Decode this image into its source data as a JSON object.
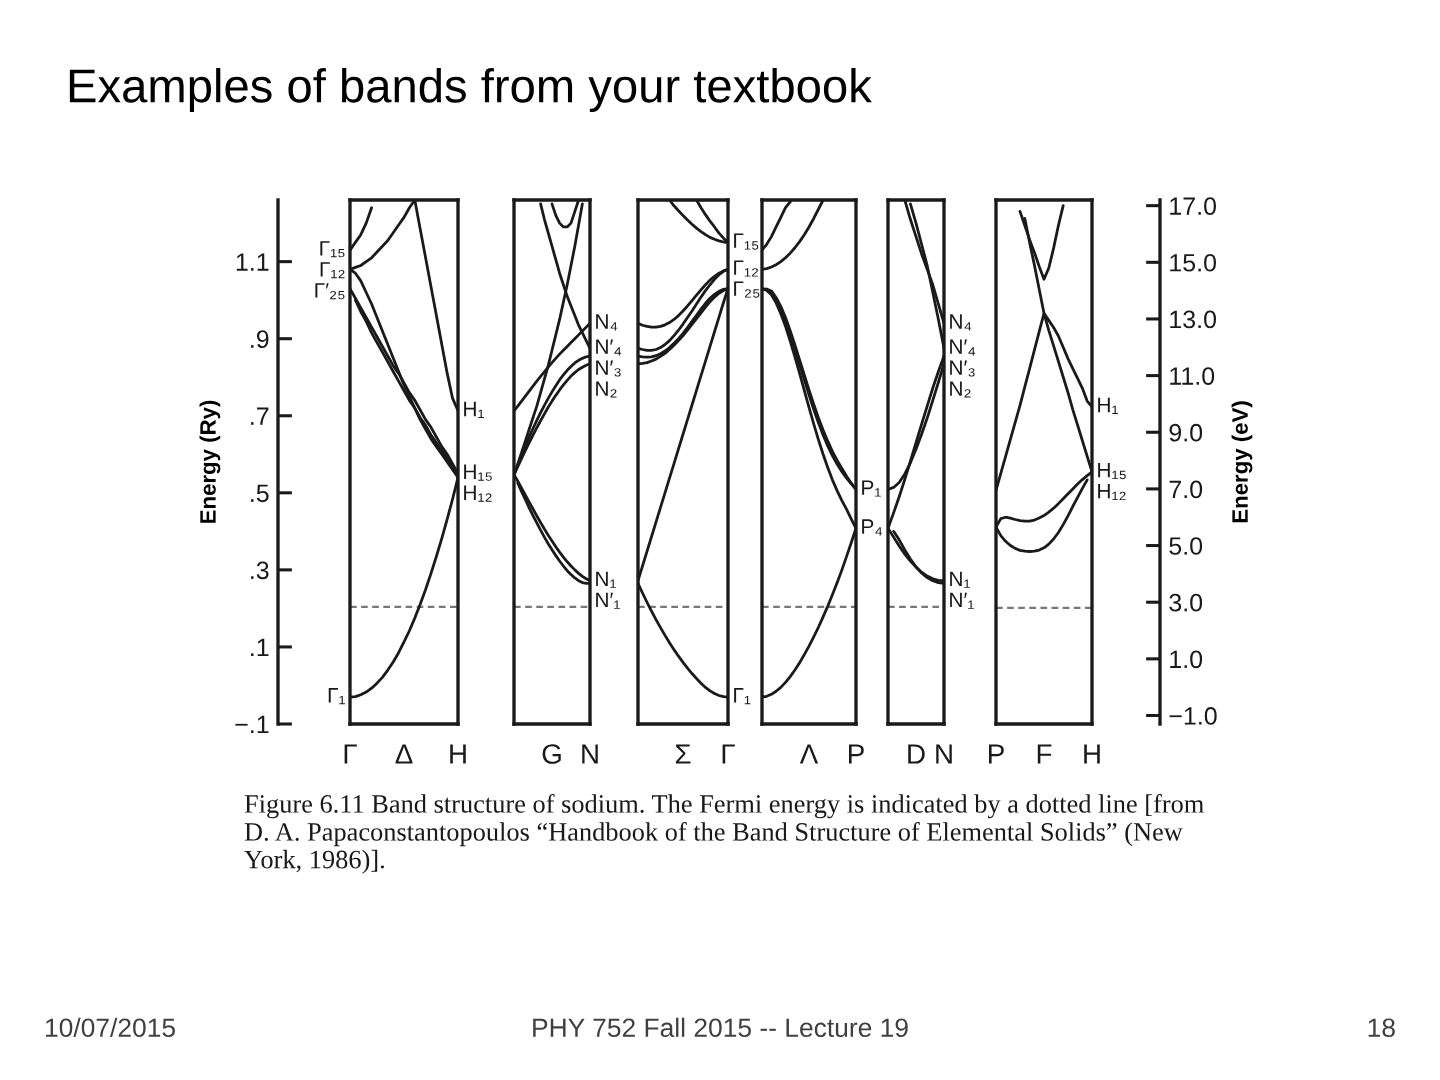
{
  "chart_data": [
    {
      "type": "line",
      "title": "Examples of bands from your textbook",
      "ylabel": "Energy (Ry)",
      "color": "#1a1a1a",
      "categories": [
        "Γ",
        null,
        null,
        null,
        null,
        null,
        null,
        null,
        null,
        null,
        "Δ",
        null,
        null,
        null,
        null,
        null,
        null,
        null,
        null,
        null,
        "H"
      ],
      "ylim": [
        -0.1,
        1.26
      ],
      "yticks": [
        {
          "value": -0.1,
          "label": "−.1"
        },
        {
          "value": 0.1,
          "label": ".1"
        },
        {
          "value": 0.3,
          "label": ".3"
        },
        {
          "value": 0.5,
          "label": ".5"
        },
        {
          "value": 0.7,
          "label": ".7"
        },
        {
          "value": 0.9,
          "label": ".9"
        },
        1.1
      ],
      "ref_lines": [
        {
          "axis": "y",
          "value": 0.204,
          "color": "#777777",
          "line_style": "dashed"
        }
      ],
      "series": [
        {
          "values": [
            -0.03,
            -0.029,
            -0.024,
            -0.017,
            -0.007,
            0.006,
            0.021,
            0.04,
            0.061,
            0.085,
            0.113,
            0.142,
            0.175,
            0.211,
            0.249,
            0.291,
            0.335,
            0.382,
            0.432,
            0.484,
            0.54
          ]
        },
        {
          "values": [
            1.03,
            1.005,
            0.98,
            0.955,
            0.93,
            0.905,
            0.88,
            0.855,
            0.83,
            0.81,
            0.785,
            0.76,
            0.74,
            0.715,
            0.69,
            0.67,
            0.645,
            0.62,
            0.6,
            0.575,
            0.55
          ]
        },
        {
          "values": [
            null,
            1.0,
            0.97,
            0.945,
            0.915,
            0.89,
            0.865,
            0.84,
            0.815,
            0.79,
            0.765,
            0.74,
            0.72,
            0.695,
            0.675,
            0.65,
            0.63,
            0.61,
            0.59,
            0.57,
            0.55
          ]
        },
        {
          "values": [
            1.08,
            1.07,
            1.05,
            1.02,
            0.99,
            0.955,
            0.92,
            0.885,
            0.85,
            0.815,
            0.78,
            0.75,
            0.72,
            0.69,
            0.665,
            0.64,
            0.62,
            0.6,
            0.58,
            0.56,
            0.54
          ]
        },
        {
          "values": [
            1.13,
            1.15,
            1.17,
            1.2,
            1.24,
            null,
            null,
            null,
            null,
            null,
            null,
            null,
            null,
            null,
            null,
            null,
            null,
            null,
            null,
            null,
            null
          ]
        },
        {
          "values": [
            1.08,
            1.085,
            1.09,
            1.1,
            1.11,
            1.125,
            1.14,
            1.155,
            1.175,
            1.195,
            1.215,
            1.24,
            1.26,
            null,
            null,
            null,
            null,
            null,
            null,
            null,
            null
          ]
        },
        {
          "values": [
            null,
            null,
            null,
            null,
            null,
            null,
            null,
            null,
            null,
            null,
            null,
            null,
            1.26,
            1.185,
            1.11,
            1.035,
            0.96,
            0.885,
            0.81,
            0.745,
            0.713
          ]
        }
      ],
      "annotations": [
        {
          "text": "Γ₁₅",
          "x": "Γ",
          "y": 1.13
        },
        {
          "text": "Γ₁₂",
          "x": "Γ",
          "y": 1.08
        },
        {
          "text": "Γ′₂₅",
          "x": "Γ",
          "y": 1.03
        },
        {
          "text": "Γ₁",
          "x": "Γ",
          "y": -0.03
        },
        {
          "text": "H₁",
          "x": "H",
          "y": 0.713
        },
        {
          "text": "H₁₅",
          "x": "H",
          "y": 0.55
        },
        {
          "text": "H₁₂",
          "x": "H",
          "y": 0.54
        },
        "Figure 6.11 Band structure of sodium. The Fermi energy is indicated by a dotted line [from D. A. Papaconstantopoulos “Handbook of the Band Structure of Elemental Solids” (New York, 1986)].",
        "10/07/2015",
        "PHY 752 Fall 2015 -- Lecture 19",
        "18"
      ]
    },
    {
      "type": "line",
      "color": "#1a1a1a",
      "tick_labels": "x",
      "categories": [
        null,
        null,
        null,
        null,
        null,
        null,
        null,
        null,
        null,
        null,
        "G",
        null,
        null,
        null,
        null,
        null,
        null,
        null,
        null,
        null,
        "N"
      ],
      "ylim": [
        -0.1,
        1.26
      ],
      "ref_lines": [
        {
          "axis": "y",
          "value": 0.204,
          "color": "#777777",
          "line_style": "dashed"
        }
      ],
      "series": [
        {
          "values": [
            0.713,
            0.725,
            0.738,
            0.751,
            0.764,
            0.777,
            0.79,
            0.802,
            0.814,
            0.826,
            0.838,
            0.849,
            0.86,
            0.87,
            0.88,
            0.89,
            0.9,
            0.91,
            0.92,
            0.93,
            0.94
          ]
        },
        {
          "values": [
            0.547,
            0.573,
            0.598,
            0.622,
            0.645,
            0.667,
            0.688,
            0.708,
            0.727,
            0.745,
            0.762,
            0.778,
            0.793,
            0.806,
            0.818,
            0.828,
            0.837,
            0.844,
            0.849,
            0.853,
            0.855
          ]
        },
        {
          "values": [
            0.547,
            0.568,
            0.589,
            0.61,
            0.63,
            0.65,
            0.669,
            0.687,
            0.705,
            0.722,
            0.738,
            0.753,
            0.767,
            0.78,
            0.792,
            0.803,
            0.812,
            0.82,
            0.826,
            0.831,
            0.835
          ]
        },
        {
          "values": [
            0.547,
            0.575,
            0.605,
            0.635,
            0.665,
            0.695,
            0.725,
            0.76,
            0.795,
            0.83,
            0.87,
            0.91,
            0.95,
            0.995,
            1.04,
            1.09,
            1.14,
            1.195,
            1.25,
            null,
            null
          ]
        },
        {
          "values": [
            null,
            null,
            null,
            null,
            null,
            null,
            null,
            1.25,
            1.21,
            1.175,
            1.14,
            1.105,
            1.07,
            1.04,
            1.01,
            0.985,
            0.96,
            0.935,
            0.915,
            0.895,
            0.875
          ]
        },
        {
          "values": [
            null,
            null,
            null,
            null,
            null,
            null,
            null,
            null,
            null,
            null,
            1.25,
            1.22,
            1.2,
            1.19,
            1.19,
            1.2,
            1.23,
            1.26,
            null,
            null,
            null
          ]
        },
        {
          "values": [
            null,
            0.525,
            0.503,
            0.482,
            0.461,
            0.441,
            0.422,
            0.403,
            0.385,
            0.368,
            0.352,
            0.337,
            0.323,
            0.31,
            0.298,
            0.288,
            0.279,
            0.272,
            0.267,
            0.265,
            0.265
          ]
        },
        {
          "values": [
            0.547,
            0.53,
            0.512,
            0.494,
            0.476,
            0.458,
            0.44,
            0.423,
            0.406,
            0.39,
            0.375,
            0.36,
            0.346,
            0.333,
            0.321,
            0.31,
            0.3,
            0.291,
            0.283,
            0.277,
            0.272
          ]
        }
      ],
      "annotations": [
        {
          "text": "N₄",
          "x": "N",
          "y": 0.94
        },
        {
          "text": "N′₄",
          "x": "N",
          "y": 0.875
        },
        {
          "text": "N′₃",
          "x": "N",
          "y": 0.855
        },
        {
          "text": "N₂",
          "x": "N",
          "y": 0.835
        },
        {
          "text": "N₁",
          "x": "N",
          "y": 0.272
        },
        {
          "text": "N′₁",
          "x": "N",
          "y": 0.265
        }
      ]
    },
    {
      "type": "line",
      "color": "#1a1a1a",
      "tick_labels": "x",
      "categories": [
        null,
        null,
        null,
        null,
        null,
        null,
        null,
        null,
        null,
        null,
        "Σ",
        null,
        null,
        null,
        null,
        null,
        null,
        null,
        null,
        null,
        "Γ"
      ],
      "ylim": [
        -0.1,
        1.26
      ],
      "ref_lines": [
        {
          "axis": "y",
          "value": 0.204,
          "color": "#777777",
          "line_style": "dashed"
        }
      ],
      "series": [
        {
          "values": [
            0.265,
            0.24,
            0.216,
            0.193,
            0.171,
            0.15,
            0.13,
            0.111,
            0.093,
            0.076,
            0.06,
            0.045,
            0.031,
            0.018,
            0.006,
            -0.005,
            -0.014,
            -0.021,
            -0.026,
            -0.029,
            -0.03
          ]
        },
        {
          "values": [
            0.272,
            0.31,
            0.348,
            0.386,
            0.424,
            0.462,
            0.5,
            0.538,
            0.576,
            0.614,
            0.652,
            0.69,
            0.728,
            0.766,
            0.804,
            0.842,
            0.88,
            0.918,
            0.956,
            0.994,
            1.03
          ]
        },
        {
          "values": [
            0.94,
            0.935,
            0.932,
            0.93,
            0.93,
            0.932,
            0.936,
            0.942,
            0.95,
            0.96,
            0.972,
            0.985,
            0.999,
            1.013,
            1.027,
            1.04,
            1.052,
            1.062,
            1.07,
            1.076,
            1.08
          ]
        },
        {
          "values": [
            0.875,
            0.872,
            0.87,
            0.87,
            0.872,
            0.877,
            0.885,
            0.895,
            0.908,
            0.922,
            0.938,
            0.955,
            0.972,
            0.99,
            1.008,
            1.025,
            1.04,
            1.054,
            1.066,
            1.075,
            1.08
          ]
        },
        {
          "values": [
            0.855,
            0.853,
            0.852,
            0.853,
            0.856,
            0.861,
            0.868,
            0.877,
            0.888,
            0.9,
            0.914,
            0.929,
            0.945,
            0.961,
            0.977,
            0.992,
            1.005,
            1.015,
            1.023,
            1.028,
            1.03
          ]
        },
        {
          "values": [
            0.835,
            0.836,
            0.838,
            0.842,
            0.847,
            0.854,
            0.862,
            0.872,
            0.883,
            0.895,
            0.908,
            0.922,
            0.937,
            0.952,
            0.967,
            0.982,
            0.996,
            1.008,
            1.018,
            1.025,
            1.03
          ]
        },
        {
          "values": [
            null,
            null,
            null,
            null,
            null,
            null,
            null,
            1.26,
            1.245,
            1.232,
            1.22,
            1.208,
            1.197,
            1.187,
            1.178,
            1.17,
            1.163,
            1.158,
            1.154,
            1.151,
            1.15
          ]
        },
        {
          "values": [
            null,
            null,
            null,
            null,
            null,
            null,
            null,
            null,
            null,
            null,
            null,
            null,
            null,
            1.26,
            1.24,
            1.222,
            1.205,
            1.19,
            1.174,
            1.161,
            1.15
          ]
        }
      ],
      "annotations": [
        {
          "text": "Γ₁₅",
          "x": "Γ",
          "y": 1.15
        },
        {
          "text": "Γ₁₂",
          "x": "Γ",
          "y": 1.08
        },
        {
          "text": "Γ₂₅",
          "x": "Γ",
          "y": 1.03
        },
        {
          "text": "Γ₁",
          "x": "Γ",
          "y": -0.03
        }
      ]
    },
    {
      "type": "line",
      "color": "#1a1a1a",
      "tick_labels": "x",
      "categories": [
        null,
        null,
        null,
        null,
        null,
        null,
        null,
        null,
        null,
        null,
        "Λ",
        null,
        null,
        null,
        null,
        null,
        null,
        null,
        null,
        null,
        "P"
      ],
      "ylim": [
        -0.1,
        1.26
      ],
      "ref_lines": [
        {
          "axis": "y",
          "value": 0.204,
          "color": "#777777",
          "line_style": "dashed"
        }
      ],
      "series": [
        {
          "values": [
            -0.03,
            -0.028,
            -0.023,
            -0.015,
            -0.005,
            0.008,
            0.023,
            0.04,
            0.059,
            0.08,
            0.102,
            0.126,
            0.151,
            0.178,
            0.206,
            0.236,
            0.267,
            0.3,
            0.335,
            0.371,
            0.408
          ]
        },
        {
          "values": [
            1.03,
            1.028,
            1.02,
            1.0,
            0.975,
            0.945,
            0.91,
            0.872,
            0.833,
            0.793,
            0.754,
            0.717,
            0.682,
            0.65,
            0.621,
            0.596,
            0.574,
            0.555,
            0.538,
            0.523,
            0.509
          ]
        },
        {
          "values": [
            null,
            1.029,
            1.024,
            1.007,
            0.984,
            0.955,
            0.921,
            0.884,
            0.845,
            0.806,
            0.767,
            0.73,
            0.695,
            0.663,
            0.634,
            0.607,
            0.584,
            0.563,
            0.543,
            0.525,
            0.509
          ]
        },
        {
          "values": [
            1.03,
            1.025,
            1.014,
            0.993,
            0.965,
            0.932,
            0.894,
            0.853,
            0.81,
            0.766,
            0.722,
            0.679,
            0.638,
            0.6,
            0.565,
            0.533,
            0.505,
            0.48,
            0.457,
            0.432,
            0.408
          ]
        },
        {
          "values": [
            1.13,
            1.145,
            1.165,
            1.19,
            1.215,
            1.24,
            1.255,
            null,
            null,
            null,
            null,
            null,
            null,
            null,
            null,
            null,
            null,
            null,
            null,
            null,
            null
          ]
        },
        {
          "values": [
            1.08,
            1.082,
            1.086,
            1.092,
            1.1,
            1.11,
            1.122,
            1.136,
            1.152,
            1.17,
            1.19,
            1.212,
            1.236,
            1.26,
            null,
            null,
            null,
            null,
            null,
            null,
            null
          ]
        }
      ],
      "annotations": [
        {
          "text": "P₁",
          "x": "P",
          "y": 0.509
        },
        {
          "text": "P₄",
          "x": "P",
          "y": 0.408
        }
      ]
    },
    {
      "type": "line",
      "color": "#1a1a1a",
      "tick_labels": "x",
      "categories": [
        null,
        null,
        null,
        null,
        null,
        "D",
        null,
        null,
        null,
        null,
        "N"
      ],
      "ylim": [
        -0.1,
        1.26
      ],
      "ref_lines": [
        {
          "axis": "y",
          "value": 0.204,
          "color": "#777777",
          "line_style": "dashed"
        }
      ],
      "series": [
        {
          "values": [
            0.509,
            0.514,
            0.527,
            0.549,
            0.578,
            0.613,
            0.652,
            0.694,
            0.74,
            0.787,
            0.835
          ]
        },
        {
          "values": [
            0.408,
            0.448,
            0.49,
            0.535,
            0.582,
            0.63,
            0.678,
            0.725,
            0.772,
            0.815,
            0.855
          ]
        },
        {
          "values": [
            null,
            null,
            null,
            1.26,
            1.21,
            1.165,
            1.12,
            1.08,
            1.04,
            0.99,
            0.94
          ]
        },
        {
          "values": [
            null,
            null,
            null,
            null,
            1.25,
            1.2,
            1.145,
            1.09,
            1.02,
            0.95,
            0.875
          ]
        },
        {
          "values": [
            0.408,
            0.385,
            0.362,
            0.341,
            0.323,
            0.307,
            0.294,
            0.284,
            0.277,
            0.273,
            0.272
          ]
        },
        {
          "values": [
            null,
            0.4,
            0.378,
            0.352,
            0.328,
            0.308,
            0.292,
            0.28,
            0.272,
            0.267,
            0.265
          ]
        }
      ],
      "annotations": [
        {
          "text": "N₄",
          "x": "N",
          "y": 0.94
        },
        {
          "text": "N′₄",
          "x": "N",
          "y": 0.875
        },
        {
          "text": "N′₃",
          "x": "N",
          "y": 0.855
        },
        {
          "text": "N₂",
          "x": "N",
          "y": 0.835
        },
        {
          "text": "N₁",
          "x": "N",
          "y": 0.272
        },
        {
          "text": "N′₁",
          "x": "N",
          "y": 0.265
        }
      ]
    },
    {
      "type": "line",
      "color": "#1a1a1a",
      "ylabel": "Energy (eV)",
      "categories": [
        "P",
        null,
        null,
        null,
        null,
        null,
        null,
        null,
        null,
        null,
        "F",
        null,
        null,
        null,
        null,
        null,
        null,
        null,
        null,
        null,
        "H"
      ],
      "ylim": [
        -1.3,
        17.2
      ],
      "yticks": [
        {
          "value": -1,
          "label": "−1.0"
        },
        {
          "value": 1,
          "label": "1.0"
        },
        {
          "value": 3,
          "label": "3.0"
        },
        {
          "value": 5,
          "label": "5.0"
        },
        {
          "value": 7,
          "label": "7.0"
        },
        {
          "value": 9,
          "label": "9.0"
        },
        {
          "value": 11,
          "label": "11.0"
        },
        {
          "value": 13,
          "label": "13.0"
        },
        {
          "value": 15,
          "label": "15.0"
        },
        {
          "value": 17,
          "label": "17.0"
        }
      ],
      "ref_lines": [
        {
          "axis": "y",
          "value": 2.8,
          "color": "#777777",
          "line_style": "dashed"
        }
      ],
      "series": [
        {
          "values": [
            6.95,
            7.55,
            8.15,
            8.75,
            9.35,
            9.95,
            10.6,
            11.25,
            11.9,
            12.55,
            13.2,
            12.95,
            12.7,
            12.4,
            12.0,
            11.6,
            11.25,
            10.9,
            10.55,
            10.1,
            9.9
          ]
        },
        {
          "values": [
            null,
            null,
            null,
            null,
            null,
            null,
            16.55,
            15.7,
            14.9,
            14.05,
            13.2,
            12.6,
            12.05,
            11.5,
            10.95,
            10.4,
            9.8,
            9.25,
            8.7,
            8.15,
            7.6
          ]
        },
        {
          "values": [
            null,
            null,
            null,
            null,
            null,
            16.8,
            16.3,
            15.8,
            15.35,
            14.85,
            14.4,
            14.8,
            15.5,
            16.3,
            17.0,
            null,
            null,
            null,
            null,
            null,
            null
          ]
        },
        {
          "values": [
            5.65,
            5.95,
            6.0,
            5.97,
            5.92,
            5.88,
            5.86,
            5.86,
            5.9,
            5.97,
            6.06,
            6.18,
            6.32,
            6.48,
            6.65,
            6.83,
            7.0,
            7.17,
            7.33,
            7.47,
            7.6
          ]
        },
        {
          "values": [
            5.65,
            5.35,
            5.15,
            5.0,
            4.9,
            4.83,
            4.8,
            4.79,
            4.8,
            4.84,
            4.92,
            5.05,
            5.23,
            5.46,
            5.74,
            6.05,
            6.38,
            6.7,
            7.02,
            7.32,
            null
          ]
        }
      ],
      "annotations": [
        {
          "text": "H₁",
          "x": "H",
          "y": 9.9
        },
        {
          "text": "H₁₅",
          "x": "H",
          "y": 7.6
        },
        {
          "text": "H₁₂",
          "x": "H",
          "y": 7.6
        }
      ]
    }
  ]
}
